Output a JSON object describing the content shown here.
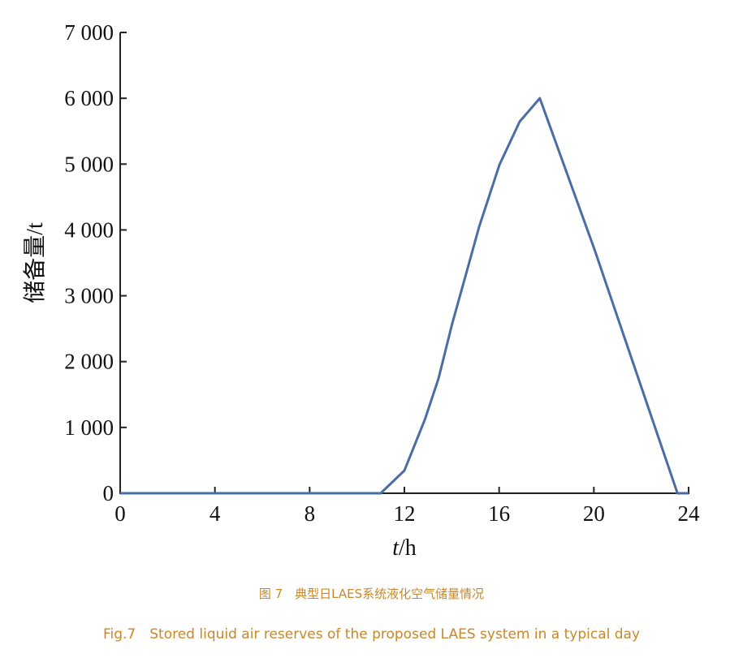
{
  "chart_data": {
    "type": "line",
    "title": "",
    "xlabel_italic": "t",
    "xlabel_unit": "/h",
    "ylabel": "储备量/t",
    "xlim": [
      0,
      24
    ],
    "ylim": [
      0,
      7000
    ],
    "x_ticks": [
      0,
      4,
      8,
      12,
      16,
      20,
      24
    ],
    "x_tick_labels": [
      "0",
      "4",
      "8",
      "12",
      "16",
      "20",
      "24"
    ],
    "y_ticks": [
      0,
      1000,
      2000,
      3000,
      4000,
      5000,
      6000,
      7000
    ],
    "y_tick_labels": [
      "0",
      "1 000",
      "2 000",
      "3 000",
      "4 000",
      "5 000",
      "6 000",
      "7 000"
    ],
    "grid": false,
    "line_color": "#4a6da3",
    "series": [
      {
        "x": [
          0,
          11.0,
          12.0,
          12.87,
          13.44,
          14.01,
          14.58,
          15.15,
          16.01,
          16.87,
          17.72,
          20.03,
          23.53,
          24
        ],
        "y": [
          0,
          0,
          345,
          1125,
          1741,
          2563,
          3303,
          4042,
          4988,
          5645,
          6000,
          3700,
          0,
          0
        ]
      }
    ]
  },
  "caption": {
    "cn": "图 7　典型日LAES系统液化空气储量情况",
    "en": "Fig.7　Stored liquid air reserves of the proposed LAES system in a typical day"
  }
}
